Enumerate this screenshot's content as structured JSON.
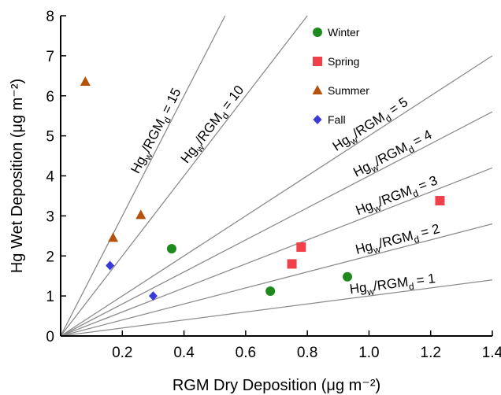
{
  "chart_data": {
    "type": "scatter",
    "title": "",
    "xlabel": "RGM Dry Deposition (μg m⁻²)",
    "ylabel": "Hg Wet Deposition (μg m⁻²)",
    "xlim": [
      0,
      1.4
    ],
    "ylim": [
      0,
      8
    ],
    "xticks": [
      "0.2",
      "0.4",
      "0.6",
      "0.8",
      "1.0",
      "1.2",
      "1.4"
    ],
    "yticks": [
      "0",
      "1",
      "2",
      "3",
      "4",
      "5",
      "6",
      "7",
      "8"
    ],
    "grid": false,
    "legend_position": "top-center",
    "series": [
      {
        "name": "Winter",
        "marker": "circle",
        "color": "#1e8a1e",
        "points": [
          {
            "x": 0.36,
            "y": 2.18
          },
          {
            "x": 0.68,
            "y": 1.12
          },
          {
            "x": 0.93,
            "y": 1.48
          }
        ]
      },
      {
        "name": "Spring",
        "marker": "square",
        "color": "#f0404a",
        "points": [
          {
            "x": 0.75,
            "y": 1.8
          },
          {
            "x": 0.78,
            "y": 2.22
          },
          {
            "x": 1.23,
            "y": 3.38
          }
        ]
      },
      {
        "name": "Summer",
        "marker": "triangle",
        "color": "#b5520e",
        "points": [
          {
            "x": 0.08,
            "y": 6.35
          },
          {
            "x": 0.17,
            "y": 2.45
          },
          {
            "x": 0.26,
            "y": 3.02
          }
        ]
      },
      {
        "name": "Fall",
        "marker": "diamond",
        "color": "#3a3ad8",
        "points": [
          {
            "x": 0.16,
            "y": 1.76
          },
          {
            "x": 0.3,
            "y": 1.0
          }
        ]
      }
    ],
    "reference_lines": [
      {
        "slope": 15,
        "label_main": "Hg",
        "label_sub1": "w",
        "label_mid": "/RGM",
        "label_sub2": "d",
        "label_end": "= 15"
      },
      {
        "slope": 10,
        "label_main": "Hg",
        "label_sub1": "w",
        "label_mid": "/RGM",
        "label_sub2": "d",
        "label_end": "= 10"
      },
      {
        "slope": 5,
        "label_main": "Hg",
        "label_sub1": "w",
        "label_mid": "/RGM",
        "label_sub2": "d",
        "label_end": "= 5"
      },
      {
        "slope": 4,
        "label_main": "Hg",
        "label_sub1": "w",
        "label_mid": "/RGM",
        "label_sub2": "d",
        "label_end": "= 4"
      },
      {
        "slope": 3,
        "label_main": "Hg",
        "label_sub1": "w",
        "label_mid": "/RGM",
        "label_sub2": "d",
        "label_end": "= 3"
      },
      {
        "slope": 2,
        "label_main": "Hg",
        "label_sub1": "w",
        "label_mid": "/RGM",
        "label_sub2": "d",
        "label_end": "= 2"
      },
      {
        "slope": 1,
        "label_main": "Hg",
        "label_sub1": "w",
        "label_mid": "/RGM",
        "label_sub2": "d",
        "label_end": "= 1"
      }
    ],
    "colors": {
      "axis": "#000000",
      "reference_line": "#8c8c8c"
    }
  }
}
